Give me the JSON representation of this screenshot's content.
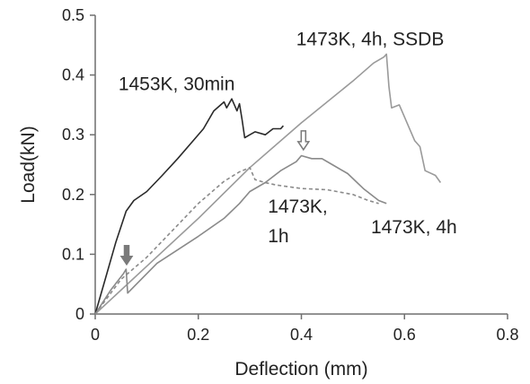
{
  "chart_data": {
    "type": "line",
    "xlabel": "Deflection (mm)",
    "ylabel": "Load(kN)",
    "xlim": [
      0,
      0.8
    ],
    "ylim": [
      0,
      0.5
    ],
    "xticks": [
      "0",
      "0.2",
      "0.4",
      "0.6",
      "0.8"
    ],
    "yticks": [
      "0",
      "0.1",
      "0.2",
      "0.3",
      "0.4",
      "0.5"
    ],
    "grid": false,
    "legend": "none",
    "series": [
      {
        "name": "1453K, 30min",
        "color": "#2a2a2a",
        "dash": "solid",
        "points": [
          [
            0,
            0
          ],
          [
            0.02,
            0.06
          ],
          [
            0.04,
            0.12
          ],
          [
            0.06,
            0.172
          ],
          [
            0.075,
            0.19
          ],
          [
            0.1,
            0.205
          ],
          [
            0.13,
            0.232
          ],
          [
            0.16,
            0.26
          ],
          [
            0.19,
            0.29
          ],
          [
            0.21,
            0.31
          ],
          [
            0.23,
            0.34
          ],
          [
            0.25,
            0.355
          ],
          [
            0.255,
            0.345
          ],
          [
            0.265,
            0.36
          ],
          [
            0.275,
            0.34
          ],
          [
            0.28,
            0.352
          ],
          [
            0.285,
            0.325
          ],
          [
            0.29,
            0.295
          ],
          [
            0.3,
            0.3
          ],
          [
            0.31,
            0.305
          ],
          [
            0.33,
            0.3
          ],
          [
            0.345,
            0.31
          ],
          [
            0.36,
            0.31
          ],
          [
            0.365,
            0.315
          ]
        ]
      },
      {
        "name": "1473K, 4h, SSDB",
        "color": "#9a9a9a",
        "dash": "solid",
        "points": [
          [
            0,
            0
          ],
          [
            0.1,
            0.08
          ],
          [
            0.2,
            0.16
          ],
          [
            0.3,
            0.245
          ],
          [
            0.4,
            0.32
          ],
          [
            0.5,
            0.39
          ],
          [
            0.54,
            0.42
          ],
          [
            0.56,
            0.43
          ],
          [
            0.565,
            0.435
          ],
          [
            0.57,
            0.38
          ],
          [
            0.575,
            0.345
          ],
          [
            0.59,
            0.35
          ],
          [
            0.6,
            0.33
          ],
          [
            0.62,
            0.29
          ],
          [
            0.63,
            0.28
          ],
          [
            0.64,
            0.24
          ],
          [
            0.66,
            0.232
          ],
          [
            0.67,
            0.22
          ]
        ]
      },
      {
        "name": "1473K, 1h",
        "color": "#8a8a8a",
        "dash": "dashed",
        "points": [
          [
            0,
            0
          ],
          [
            0.05,
            0.058
          ],
          [
            0.1,
            0.095
          ],
          [
            0.15,
            0.14
          ],
          [
            0.2,
            0.185
          ],
          [
            0.25,
            0.222
          ],
          [
            0.28,
            0.238
          ],
          [
            0.3,
            0.245
          ],
          [
            0.31,
            0.225
          ],
          [
            0.33,
            0.22
          ],
          [
            0.35,
            0.216
          ],
          [
            0.4,
            0.21
          ],
          [
            0.45,
            0.208
          ],
          [
            0.5,
            0.2
          ],
          [
            0.53,
            0.19
          ],
          [
            0.55,
            0.185
          ]
        ]
      },
      {
        "name": "1473K, 4h",
        "color": "#8a8a8a",
        "dash": "solid",
        "points": [
          [
            0,
            0
          ],
          [
            0.03,
            0.04
          ],
          [
            0.055,
            0.068
          ],
          [
            0.06,
            0.075
          ],
          [
            0.063,
            0.035
          ],
          [
            0.08,
            0.05
          ],
          [
            0.12,
            0.085
          ],
          [
            0.2,
            0.13
          ],
          [
            0.25,
            0.16
          ],
          [
            0.28,
            0.185
          ],
          [
            0.3,
            0.205
          ],
          [
            0.33,
            0.22
          ],
          [
            0.36,
            0.24
          ],
          [
            0.39,
            0.255
          ],
          [
            0.4,
            0.265
          ],
          [
            0.42,
            0.26
          ],
          [
            0.44,
            0.26
          ],
          [
            0.46,
            0.25
          ],
          [
            0.49,
            0.235
          ],
          [
            0.52,
            0.21
          ],
          [
            0.55,
            0.19
          ],
          [
            0.565,
            0.185
          ]
        ]
      }
    ],
    "annotations": [
      {
        "text": "1453K, 30min",
        "x": 0.045,
        "y": 0.375,
        "anchor": "start"
      },
      {
        "text": "1473K, 4h, SSDB",
        "x": 0.39,
        "y": 0.45,
        "anchor": "start"
      },
      {
        "text": "1473K,",
        "x": 0.335,
        "y": 0.17,
        "anchor": "start"
      },
      {
        "text": "1h",
        "x": 0.335,
        "y": 0.12,
        "anchor": "start"
      },
      {
        "text": "1473K, 4h",
        "x": 0.535,
        "y": 0.135,
        "anchor": "start"
      }
    ],
    "markers": [
      {
        "type": "arrow-down-filled",
        "x": 0.061,
        "y": 0.083,
        "color": "#7a7a7a"
      },
      {
        "type": "arrow-down-hollow",
        "x": 0.404,
        "y": 0.275,
        "color": "#7a7a7a"
      }
    ]
  }
}
